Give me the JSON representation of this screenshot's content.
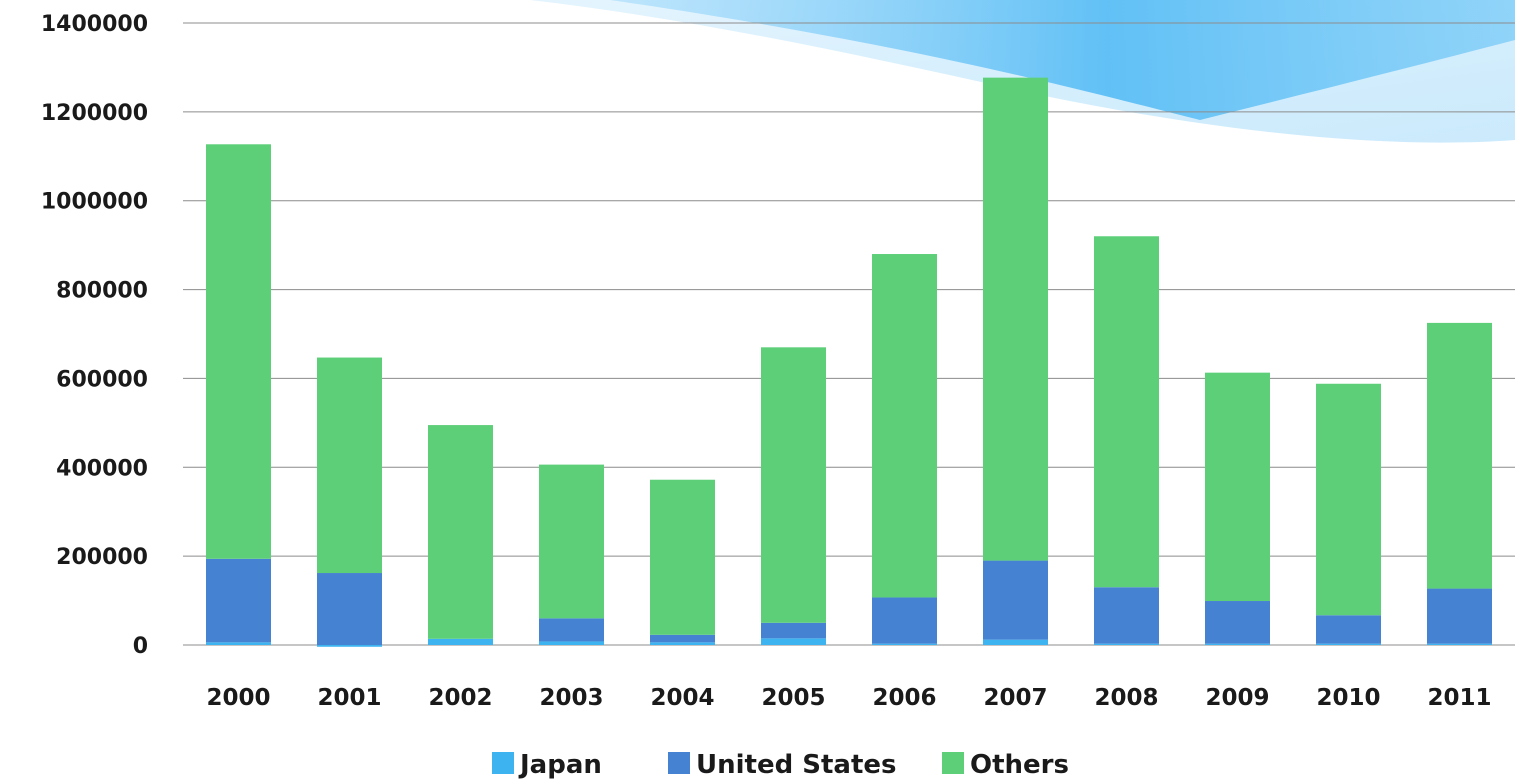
{
  "chart_data": {
    "type": "bar",
    "stacked": true,
    "title": "",
    "xlabel": "",
    "ylabel": "",
    "ylim": [
      0,
      1400000
    ],
    "yticks": [
      "0",
      "200000",
      "400000",
      "600000",
      "800000",
      "1000000",
      "1200000",
      "1400000"
    ],
    "grid": true,
    "legend_position": "bottom",
    "categories": [
      "2000",
      "2001",
      "2002",
      "2003",
      "2004",
      "2005",
      "2006",
      "2007",
      "2008",
      "2009",
      "2010",
      "2011"
    ],
    "series": [
      {
        "name": "Japan",
        "color": "#3db4f0",
        "values": [
          6000,
          -4000,
          14000,
          8000,
          6000,
          15000,
          3000,
          12000,
          3000,
          3000,
          3000,
          3000
        ]
      },
      {
        "name": "United States",
        "color": "#4682d2",
        "values": [
          188000,
          162000,
          0,
          52000,
          17000,
          35000,
          104000,
          178000,
          127000,
          96000,
          64000,
          124000
        ]
      },
      {
        "name": "Others",
        "color": "#5ccf78",
        "values": [
          933000,
          485000,
          481000,
          346000,
          349000,
          620000,
          773000,
          1087000,
          790000,
          514000,
          521000,
          598000
        ]
      }
    ]
  }
}
